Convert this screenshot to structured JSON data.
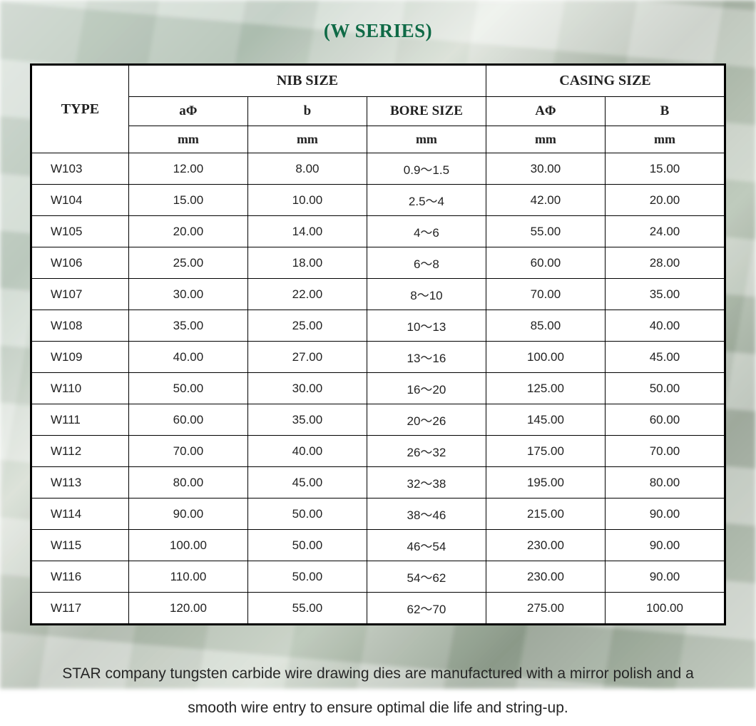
{
  "title": "(W SERIES)",
  "title_color": "#0f6a46",
  "background_color": "#ffffff",
  "border_color": "#000000",
  "text_color": "#222222",
  "header_font": "Georgia",
  "body_font": "Arial",
  "table": {
    "type": "table",
    "type_header": "TYPE",
    "group_headers": {
      "nib": "NIB SIZE",
      "casing": "CASING SIZE"
    },
    "sub_headers": {
      "a_phi": "aΦ",
      "b": "b",
      "bore": "BORE SIZE",
      "A_phi": "AΦ",
      "B": "B"
    },
    "unit_row": {
      "a_phi": "mm",
      "b": "mm",
      "bore": "mm",
      "A_phi": "mm",
      "B": "mm"
    },
    "rows": [
      {
        "type": "W103",
        "a": "12.00",
        "b": "8.00",
        "bore": "0.9～1.5",
        "A": "30.00",
        "B": "15.00"
      },
      {
        "type": "W104",
        "a": "15.00",
        "b": "10.00",
        "bore": "2.5～4",
        "A": "42.00",
        "B": "20.00"
      },
      {
        "type": "W105",
        "a": "20.00",
        "b": "14.00",
        "bore": "4～6",
        "A": "55.00",
        "B": "24.00"
      },
      {
        "type": "W106",
        "a": "25.00",
        "b": "18.00",
        "bore": "6～8",
        "A": "60.00",
        "B": "28.00"
      },
      {
        "type": "W107",
        "a": "30.00",
        "b": "22.00",
        "bore": "8～10",
        "A": "70.00",
        "B": "35.00"
      },
      {
        "type": "W108",
        "a": "35.00",
        "b": "25.00",
        "bore": "10～13",
        "A": "85.00",
        "B": "40.00"
      },
      {
        "type": "W109",
        "a": "40.00",
        "b": "27.00",
        "bore": "13～16",
        "A": "100.00",
        "B": "45.00"
      },
      {
        "type": "W110",
        "a": "50.00",
        "b": "30.00",
        "bore": "16～20",
        "A": "125.00",
        "B": "50.00"
      },
      {
        "type": "W111",
        "a": "60.00",
        "b": "35.00",
        "bore": "20～26",
        "A": "145.00",
        "B": "60.00"
      },
      {
        "type": "W112",
        "a": "70.00",
        "b": "40.00",
        "bore": "26～32",
        "A": "175.00",
        "B": "70.00"
      },
      {
        "type": "W113",
        "a": "80.00",
        "b": "45.00",
        "bore": "32～38",
        "A": "195.00",
        "B": "80.00"
      },
      {
        "type": "W114",
        "a": "90.00",
        "b": "50.00",
        "bore": "38～46",
        "A": "215.00",
        "B": "90.00"
      },
      {
        "type": "W115",
        "a": "100.00",
        "b": "50.00",
        "bore": "46～54",
        "A": "230.00",
        "B": "90.00"
      },
      {
        "type": "W116",
        "a": "110.00",
        "b": "50.00",
        "bore": "54～62",
        "A": "230.00",
        "B": "90.00"
      },
      {
        "type": "W117",
        "a": "120.00",
        "b": "55.00",
        "bore": "62～70",
        "A": "275.00",
        "B": "100.00"
      }
    ]
  },
  "footer": "STAR company tungsten carbide wire drawing dies are manufactured with a mirror polish and a smooth wire entry to ensure optimal die life and string-up."
}
